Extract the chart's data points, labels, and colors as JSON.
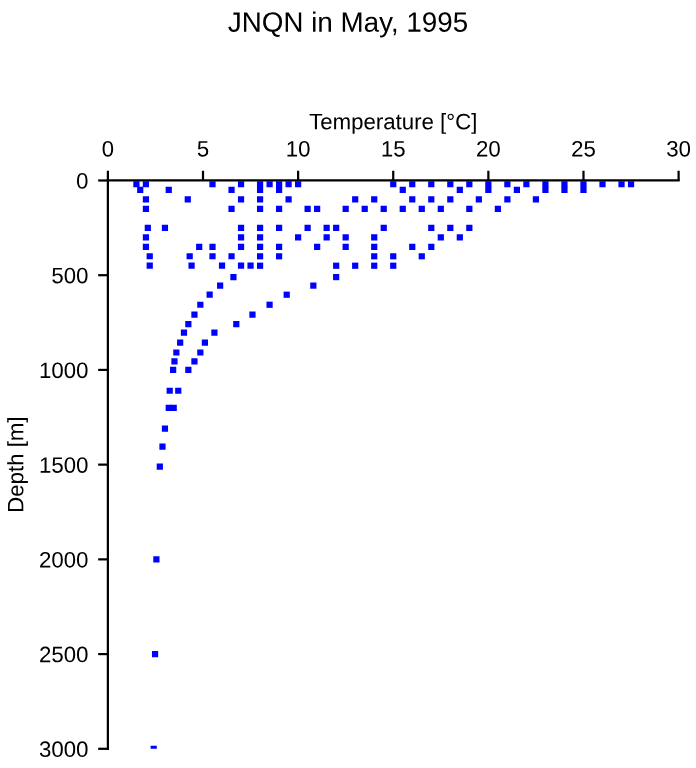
{
  "chart_data": {
    "type": "scatter",
    "title": "JNQN in May, 1995",
    "xlabel": "Temperature [°C]",
    "ylabel": "Depth [m]",
    "xlim": [
      0,
      30
    ],
    "xticks": [
      0,
      5,
      10,
      15,
      20,
      25,
      30
    ],
    "ylim": [
      3000,
      0
    ],
    "yticks": [
      0,
      500,
      1000,
      1500,
      2000,
      2500,
      3000
    ],
    "grid": false,
    "marker": "square",
    "series": [
      {
        "color": "#0000ff",
        "x": [
          1.5,
          2,
          5.5,
          7,
          8,
          8.5,
          9,
          9.5,
          10,
          15,
          16,
          17,
          18,
          19,
          20,
          21,
          22,
          23,
          24,
          25,
          26,
          27,
          27.5,
          1.7,
          3.2,
          6.5,
          8,
          9,
          15.5,
          18.5,
          20,
          21.5,
          23,
          24,
          25,
          2.0,
          4.2,
          7,
          8,
          9.5,
          13,
          14,
          16,
          17,
          18,
          19.5,
          21,
          22.5,
          2.0,
          6.5,
          8,
          9,
          10.5,
          11,
          12.5,
          13.5,
          14.5,
          15.5,
          16.5,
          17.5,
          19,
          20.5,
          2.1,
          3,
          7,
          8,
          9,
          10.5,
          11.5,
          12,
          14.5,
          17,
          18,
          19,
          2.0,
          7,
          8,
          10,
          11.5,
          12.5,
          14,
          17.5,
          18.5,
          2.0,
          4.8,
          5.5,
          7,
          8,
          9,
          11,
          12.5,
          14,
          16,
          17,
          2.2,
          4.3,
          5.5,
          6.5,
          8,
          9,
          14,
          15,
          16.5,
          2.2,
          4.4,
          6,
          7,
          7.5,
          8,
          12,
          13,
          14,
          15,
          6.6,
          12.0,
          5.9,
          5.35,
          4.86,
          4.55,
          4.23,
          4.0,
          3.8,
          3.6,
          3.5,
          3.43,
          3.25,
          3.7,
          3.2,
          3.46,
          3.0,
          2.87,
          2.73,
          10.8,
          9.4,
          8.5,
          7.6,
          6.75,
          5.6,
          5.1,
          4.86,
          4.55,
          4.23,
          2.55,
          2.48,
          2.41
        ],
        "values": [
          20,
          20,
          20,
          20,
          20,
          20,
          20,
          20,
          20,
          20,
          20,
          20,
          20,
          20,
          20,
          20,
          20,
          20,
          20,
          20,
          20,
          20,
          20,
          50,
          50,
          50,
          50,
          50,
          50,
          50,
          50,
          50,
          50,
          50,
          50,
          100,
          100,
          100,
          100,
          100,
          100,
          100,
          100,
          100,
          100,
          100,
          100,
          100,
          150,
          150,
          150,
          150,
          150,
          150,
          150,
          150,
          150,
          150,
          150,
          150,
          150,
          150,
          250,
          250,
          250,
          250,
          250,
          250,
          250,
          250,
          250,
          250,
          250,
          250,
          300,
          300,
          300,
          300,
          300,
          300,
          300,
          300,
          300,
          350,
          350,
          350,
          350,
          350,
          350,
          350,
          350,
          350,
          350,
          350,
          400,
          400,
          400,
          400,
          400,
          400,
          400,
          400,
          400,
          450,
          450,
          450,
          450,
          450,
          450,
          450,
          450,
          450,
          450,
          510,
          510,
          555,
          603,
          656,
          708,
          758,
          803,
          856,
          908,
          955,
          1000,
          1110,
          1110,
          1200,
          1200,
          1310,
          1405,
          1510,
          555,
          603,
          656,
          708,
          758,
          803,
          856,
          908,
          955,
          1000,
          2000,
          2500,
          3000
        ]
      }
    ]
  }
}
